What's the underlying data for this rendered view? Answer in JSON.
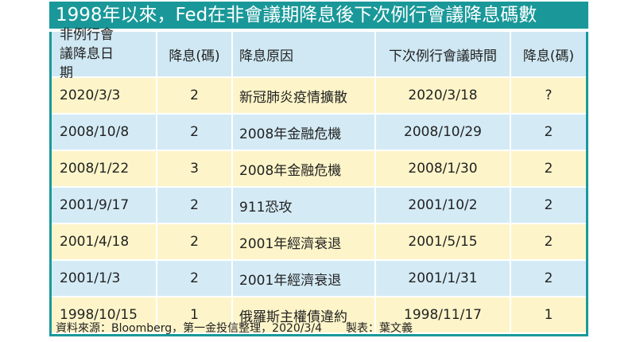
{
  "title": "1998年以來，Fed在非會議期降息後下次例行會議降息碼數",
  "table": {
    "header": [
      "非例行會議降息日期",
      "降息(碼)",
      "降息原因",
      "下次例行會議時間",
      "降息(碼)"
    ],
    "rows": [
      [
        "2020/3/3",
        "2",
        "新冠肺炎疫情擴散",
        "2020/3/18",
        "?"
      ],
      [
        "2008/10/8",
        "2",
        "2008年金融危機",
        "2008/10/29",
        "2"
      ],
      [
        "2008/1/22",
        "3",
        "2008年金融危機",
        "2008/1/30",
        "2"
      ],
      [
        "2001/9/17",
        "2",
        "911恐攻",
        "2001/10/2",
        "2"
      ],
      [
        "2001/4/18",
        "2",
        "2001年經濟衰退",
        "2001/5/15",
        "2"
      ],
      [
        "2001/1/3",
        "2",
        "2001年經濟衰退",
        "2001/1/31",
        "2"
      ],
      [
        "1998/10/15",
        "1",
        "俄羅斯主權債違約",
        "1998/11/17",
        "1"
      ]
    ]
  },
  "footer": {
    "source": "資料來源：Bloomberg，第一金投信整理，2020/3/4",
    "author": "製表：葉文義"
  }
}
